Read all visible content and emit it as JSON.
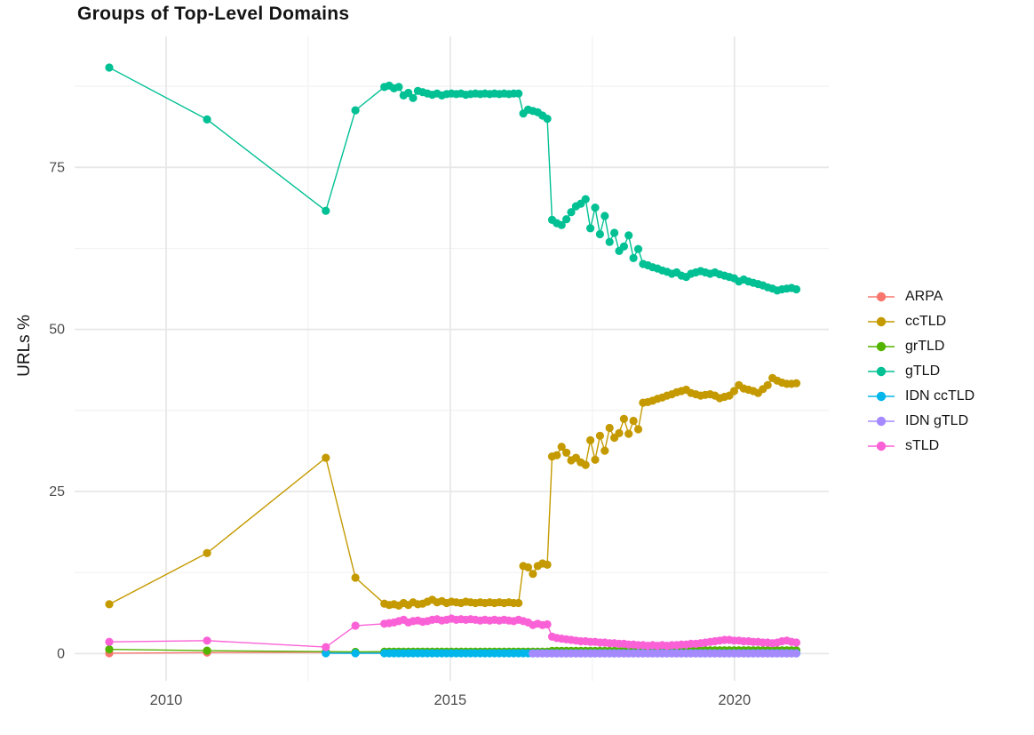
{
  "chart_data": {
    "type": "line",
    "title": "Groups of Top-Level Domains",
    "xlabel": "",
    "ylabel": "URLs %",
    "legend_position": "right",
    "grid": true,
    "x_axis": {
      "range": [
        2008.39,
        2021.66
      ],
      "ticks": [
        2010,
        2015,
        2020
      ],
      "tick_labels": [
        "2010",
        "2015",
        "2020"
      ],
      "minor_gridlines": [
        2012.5,
        2017.5
      ]
    },
    "y_axis": {
      "range": [
        -4.2,
        95.2
      ],
      "ticks": [
        0,
        25,
        50,
        75
      ],
      "tick_labels": [
        "0",
        "25",
        "50",
        "75"
      ],
      "minor_gridlines": [
        12.5,
        37.5,
        62.5,
        87.5
      ]
    },
    "series": [
      {
        "name": "ARPA",
        "color": "#F8766D",
        "points": [
          [
            2009.0,
            0.05
          ],
          [
            2010.72,
            0.15
          ],
          [
            2012.81,
            0.2
          ],
          [
            2013.33,
            0.12
          ],
          [
            2013.84,
            0.1
          ]
        ]
      },
      {
        "name": "ccTLD",
        "color": "#C49A00",
        "points": [
          [
            2009.0,
            7.6
          ],
          [
            2010.72,
            15.5
          ],
          [
            2012.81,
            30.2
          ],
          [
            2013.33,
            11.7
          ]
        ],
        "dense": {
          "start": 2013.84,
          "step": 0.0843,
          "values": [
            7.7,
            7.5,
            7.6,
            7.4,
            7.8,
            7.5,
            7.9,
            7.6,
            7.7,
            8.0,
            8.3,
            7.9,
            8.1,
            7.8,
            8.0,
            7.9,
            7.8,
            8.0,
            7.9,
            7.8,
            7.9,
            7.8,
            7.9,
            7.8,
            7.9,
            7.8,
            7.9,
            7.8,
            7.8,
            13.5,
            13.3,
            12.3,
            13.5,
            13.9,
            13.7,
            30.4,
            30.6,
            31.9,
            31.0,
            29.8,
            30.2,
            29.5,
            29.1,
            32.9,
            29.9,
            33.6,
            31.3,
            34.8,
            33.3,
            34.0,
            36.2,
            33.9,
            35.9,
            34.6,
            38.7,
            38.8,
            39.0,
            39.3,
            39.5,
            39.8,
            40.0,
            40.3,
            40.5,
            40.7,
            40.2,
            40.0,
            39.8,
            39.9,
            40.0,
            39.8,
            39.4,
            39.6,
            39.8,
            40.5,
            41.4,
            40.9,
            40.7,
            40.5,
            40.2,
            40.8,
            41.4,
            42.5,
            42.1,
            41.8,
            41.6,
            41.6,
            41.7
          ]
        }
      },
      {
        "name": "grTLD",
        "color": "#53B400",
        "points": [
          [
            2009.0,
            0.65
          ],
          [
            2010.72,
            0.45
          ],
          [
            2012.81,
            0.3
          ],
          [
            2013.33,
            0.25
          ]
        ],
        "dense": {
          "start": 2013.84,
          "step": 0.0843,
          "values": [
            0.3,
            0.3,
            0.3,
            0.3,
            0.3,
            0.3,
            0.3,
            0.3,
            0.3,
            0.3,
            0.3,
            0.3,
            0.3,
            0.3,
            0.3,
            0.3,
            0.3,
            0.3,
            0.3,
            0.3,
            0.3,
            0.3,
            0.3,
            0.3,
            0.3,
            0.3,
            0.3,
            0.3,
            0.3,
            0.3,
            0.3,
            0.3,
            0.3,
            0.3,
            0.3,
            0.4,
            0.4,
            0.4,
            0.4,
            0.4,
            0.4,
            0.4,
            0.4,
            0.4,
            0.4,
            0.4,
            0.4,
            0.4,
            0.4,
            0.4,
            0.4,
            0.4,
            0.4,
            0.4,
            0.5,
            0.5,
            0.5,
            0.5,
            0.5,
            0.5,
            0.5,
            0.5,
            0.5,
            0.5,
            0.5,
            0.5,
            0.5,
            0.5,
            0.5,
            0.5,
            0.5,
            0.5,
            0.5,
            0.5,
            0.5,
            0.5,
            0.5,
            0.5,
            0.5,
            0.5,
            0.5,
            0.5,
            0.5,
            0.5,
            0.5,
            0.5,
            0.5
          ]
        }
      },
      {
        "name": "gTLD",
        "color": "#00C094",
        "points": [
          [
            2009.0,
            90.4
          ],
          [
            2010.72,
            82.4
          ],
          [
            2012.81,
            68.3
          ],
          [
            2013.33,
            83.8
          ]
        ],
        "dense": {
          "start": 2013.84,
          "step": 0.0843,
          "values": [
            87.4,
            87.6,
            87.2,
            87.4,
            86.1,
            86.5,
            85.7,
            86.8,
            86.6,
            86.4,
            86.2,
            86.4,
            86.1,
            86.3,
            86.4,
            86.3,
            86.4,
            86.2,
            86.3,
            86.4,
            86.3,
            86.4,
            86.3,
            86.4,
            86.3,
            86.4,
            86.3,
            86.4,
            86.4,
            83.3,
            83.9,
            83.7,
            83.5,
            83.0,
            82.5,
            66.9,
            66.4,
            66.1,
            67.0,
            68.1,
            69.0,
            69.4,
            70.1,
            65.6,
            68.8,
            64.7,
            67.5,
            63.5,
            64.9,
            62.1,
            62.8,
            64.5,
            61.0,
            62.4,
            60.1,
            59.9,
            59.6,
            59.4,
            59.1,
            58.9,
            58.6,
            58.8,
            58.3,
            58.1,
            58.6,
            58.8,
            59.0,
            58.8,
            58.6,
            58.8,
            58.5,
            58.3,
            58.1,
            57.9,
            57.4,
            57.7,
            57.4,
            57.2,
            57.0,
            56.8,
            56.5,
            56.3,
            56.0,
            56.2,
            56.3,
            56.4,
            56.2
          ]
        }
      },
      {
        "name": "IDN ccTLD",
        "color": "#00B6EB",
        "points": [
          [
            2012.81,
            0.05
          ],
          [
            2013.33,
            0.05
          ]
        ],
        "dense": {
          "start": 2013.84,
          "step": 0.0843,
          "count": 87,
          "value": 0.05
        }
      },
      {
        "name": "IDN gTLD",
        "color": "#A58AFF",
        "points": [],
        "dense": {
          "start": 2016.45,
          "step": 0.0843,
          "count": 56,
          "value": 0.02
        }
      },
      {
        "name": "sTLD",
        "color": "#FB61D7",
        "points": [
          [
            2009.0,
            1.8
          ],
          [
            2010.72,
            2.0
          ],
          [
            2012.81,
            1.0
          ],
          [
            2013.33,
            4.3
          ]
        ],
        "dense": {
          "start": 2013.84,
          "step": 0.0843,
          "values": [
            4.6,
            4.7,
            4.8,
            5.0,
            5.2,
            4.8,
            5.0,
            5.1,
            4.9,
            5.0,
            5.2,
            5.3,
            5.1,
            5.2,
            5.4,
            5.2,
            5.3,
            5.2,
            5.3,
            5.2,
            5.1,
            5.2,
            5.1,
            5.2,
            5.1,
            5.2,
            5.1,
            5.0,
            5.2,
            5.0,
            4.8,
            4.4,
            4.6,
            4.4,
            4.5,
            2.6,
            2.4,
            2.3,
            2.2,
            2.1,
            2.0,
            1.9,
            1.9,
            1.8,
            1.8,
            1.7,
            1.7,
            1.6,
            1.6,
            1.5,
            1.5,
            1.4,
            1.4,
            1.3,
            1.3,
            1.2,
            1.3,
            1.2,
            1.3,
            1.2,
            1.3,
            1.3,
            1.4,
            1.4,
            1.5,
            1.5,
            1.6,
            1.7,
            1.8,
            1.9,
            2.0,
            2.1,
            2.1,
            2.0,
            2.0,
            1.9,
            1.9,
            1.8,
            1.8,
            1.7,
            1.7,
            1.6,
            1.7,
            1.9,
            2.0,
            1.8,
            1.7
          ]
        }
      }
    ],
    "style": {
      "major_grid_color": "#E8E8E8",
      "minor_grid_color": "#F2F2F2",
      "tick_label_color": "#4D4D4D",
      "point_radius": 4.6,
      "line_width": 1.4
    }
  }
}
